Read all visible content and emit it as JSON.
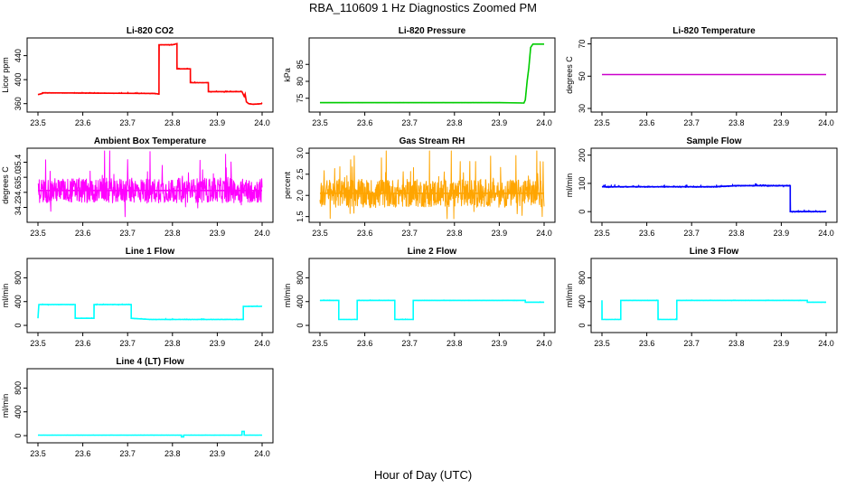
{
  "title": "RBA_110609  1 Hz Diagnostics Zoomed PM",
  "xlabel": "Hour of Day (UTC)",
  "chart_data": [
    {
      "type": "line",
      "title": "Li-820 CO2",
      "ylabel": "Licor ppm",
      "xlim": [
        23.5,
        24.0
      ],
      "ylim": [
        352,
        465
      ],
      "xticks": [
        "23.5",
        "23.6",
        "23.7",
        "23.8",
        "23.9",
        "24.0"
      ],
      "yticks": [
        "360",
        "400",
        "440"
      ],
      "color": "#ff0000",
      "noise": 1.0,
      "series": [
        {
          "x": [
            23.5,
            23.51,
            23.51,
            23.76,
            23.77,
            23.77,
            23.8,
            23.81,
            23.81,
            23.84,
            23.84,
            23.88,
            23.88,
            23.955,
            23.96,
            23.962,
            23.965,
            23.97,
            23.98,
            24.0
          ],
          "y": [
            375,
            377,
            378,
            377,
            376,
            458,
            458,
            460,
            418,
            418,
            395,
            395,
            380,
            380,
            372,
            376,
            363,
            360,
            359,
            360
          ]
        }
      ]
    },
    {
      "type": "line",
      "title": "Li-820 Pressure",
      "ylabel": "kPa",
      "xlim": [
        23.5,
        24.0
      ],
      "ylim": [
        72,
        92
      ],
      "xticks": [
        "23.5",
        "23.6",
        "23.7",
        "23.8",
        "23.9",
        "24.0"
      ],
      "yticks": [
        "75",
        "80",
        "85"
      ],
      "color": "#00cc00",
      "noise": 0.05,
      "series": [
        {
          "x": [
            23.5,
            23.9,
            23.955,
            23.958,
            23.962,
            23.966,
            23.97,
            23.975,
            24.0
          ],
          "y": [
            73.7,
            73.7,
            73.6,
            74.5,
            80,
            84,
            90,
            91,
            91
          ]
        }
      ]
    },
    {
      "type": "line",
      "title": "Li-820 Temperature",
      "ylabel": "degrees C",
      "xlim": [
        23.5,
        24.0
      ],
      "ylim": [
        30,
        72
      ],
      "xticks": [
        "23.5",
        "23.6",
        "23.7",
        "23.8",
        "23.9",
        "24.0"
      ],
      "yticks": [
        "30",
        "50",
        "70"
      ],
      "color": "#cc00cc",
      "noise": 0,
      "series": [
        {
          "x": [
            23.5,
            24.0
          ],
          "y": [
            51,
            51
          ]
        }
      ]
    },
    {
      "type": "line",
      "title": "Ambient Box Temperature",
      "ylabel": "degrees C",
      "xlim": [
        23.5,
        24.0
      ],
      "ylim": [
        33.9,
        35.7
      ],
      "xticks": [
        "23.5",
        "23.6",
        "23.7",
        "23.8",
        "23.9",
        "24.0"
      ],
      "yticks": [
        "34.2",
        "34.6",
        "35.0",
        "35.4"
      ],
      "color": "#ff00ff",
      "noise": 0.55,
      "series": [
        {
          "x": [
            23.5,
            24.0
          ],
          "y": [
            34.65,
            34.65
          ]
        }
      ]
    },
    {
      "type": "line",
      "title": "Gas Stream RH",
      "ylabel": "percent",
      "xlim": [
        23.5,
        24.0
      ],
      "ylim": [
        1.45,
        3.05
      ],
      "xticks": [
        "23.5",
        "23.6",
        "23.7",
        "23.8",
        "23.9",
        "24.0"
      ],
      "yticks": [
        "1.5",
        "2.0",
        "2.5",
        "3.0"
      ],
      "color": "#ffa500",
      "noise": 0.55,
      "series": [
        {
          "x": [
            23.5,
            24.0
          ],
          "y": [
            2.05,
            2.05
          ]
        }
      ]
    },
    {
      "type": "line",
      "title": "Sample Flow",
      "ylabel": "ml/min",
      "xlim": [
        23.5,
        24.0
      ],
      "ylim": [
        -25,
        215
      ],
      "xticks": [
        "23.5",
        "23.6",
        "23.7",
        "23.8",
        "23.9",
        "24.0"
      ],
      "yticks": [
        "0",
        "100",
        "200"
      ],
      "color": "#0000ff",
      "noise": 4,
      "series": [
        {
          "x": [
            23.5,
            23.75,
            23.8,
            23.92,
            23.92,
            24.0
          ],
          "y": [
            88,
            88,
            92,
            92,
            0,
            0
          ]
        }
      ]
    },
    {
      "type": "line",
      "title": "Line 1 Flow",
      "ylabel": "ml/min",
      "xlim": [
        23.5,
        24.0
      ],
      "ylim": [
        -60,
        1080
      ],
      "xticks": [
        "23.5",
        "23.6",
        "23.7",
        "23.8",
        "23.9",
        "24.0"
      ],
      "yticks": [
        "0",
        "400",
        "800"
      ],
      "color": "#00ffff",
      "noise": 10,
      "series": [
        {
          "x": [
            23.5,
            23.502,
            23.583,
            23.583,
            23.625,
            23.625,
            23.708,
            23.708,
            23.75,
            23.958,
            23.958,
            24.0
          ],
          "y": [
            120,
            350,
            350,
            120,
            120,
            350,
            350,
            120,
            100,
            100,
            320,
            320
          ]
        }
      ]
    },
    {
      "type": "line",
      "title": "Line 2 Flow",
      "ylabel": "ml/min",
      "xlim": [
        23.5,
        24.0
      ],
      "ylim": [
        -60,
        1080
      ],
      "xticks": [
        "23.5",
        "23.6",
        "23.7",
        "23.8",
        "23.9",
        "24.0"
      ],
      "yticks": [
        "0",
        "400",
        "800"
      ],
      "color": "#00ffff",
      "noise": 6,
      "series": [
        {
          "x": [
            23.5,
            23.542,
            23.542,
            23.583,
            23.583,
            23.667,
            23.667,
            23.708,
            23.708,
            23.958,
            23.958,
            24.0
          ],
          "y": [
            420,
            420,
            100,
            100,
            420,
            420,
            100,
            100,
            420,
            420,
            390,
            390
          ]
        }
      ]
    },
    {
      "type": "line",
      "title": "Line 3 Flow",
      "ylabel": "ml/min",
      "xlim": [
        23.5,
        24.0
      ],
      "ylim": [
        -60,
        1080
      ],
      "xticks": [
        "23.5",
        "23.6",
        "23.7",
        "23.8",
        "23.9",
        "24.0"
      ],
      "yticks": [
        "0",
        "400",
        "800"
      ],
      "color": "#00ffff",
      "noise": 6,
      "series": [
        {
          "x": [
            23.5,
            23.5,
            23.542,
            23.542,
            23.625,
            23.625,
            23.667,
            23.667,
            23.958,
            23.958,
            24.0
          ],
          "y": [
            420,
            100,
            100,
            420,
            420,
            100,
            100,
            420,
            420,
            390,
            390
          ]
        }
      ]
    },
    {
      "type": "line",
      "title": "Line 4 (LT) Flow",
      "ylabel": "ml/min",
      "xlim": [
        23.5,
        24.0
      ],
      "ylim": [
        -60,
        1080
      ],
      "xticks": [
        "23.5",
        "23.6",
        "23.7",
        "23.8",
        "23.9",
        "24.0"
      ],
      "yticks": [
        "0",
        "400",
        "800"
      ],
      "color": "#00ffff",
      "noise": 3,
      "series": [
        {
          "x": [
            23.5,
            23.82,
            23.82,
            23.825,
            23.825,
            23.955,
            23.955,
            23.96,
            23.96,
            24.0
          ],
          "y": [
            8,
            8,
            -20,
            -20,
            8,
            8,
            70,
            70,
            8,
            8
          ]
        }
      ]
    }
  ]
}
